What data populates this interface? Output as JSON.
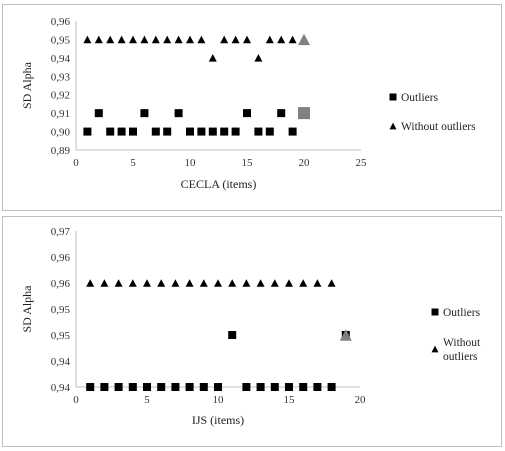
{
  "chart_data": [
    {
      "type": "scatter",
      "title": "",
      "xlabel": "CECLA (items)",
      "ylabel": "SD Alpha",
      "xlim": [
        0,
        25
      ],
      "ylim": [
        0.89,
        0.96
      ],
      "x_ticks": [
        "0",
        "5",
        "10",
        "15",
        "20",
        "25"
      ],
      "y_ticks": [
        "0,96",
        "0,95",
        "0,94",
        "0,93",
        "0,92",
        "0,91",
        "0,90",
        "0,89"
      ],
      "legend_position": "right",
      "series": [
        {
          "name": "Outliers",
          "marker": "square",
          "color": "#000000",
          "points": [
            [
              1,
              0.9
            ],
            [
              2,
              0.91
            ],
            [
              3,
              0.9
            ],
            [
              4,
              0.9
            ],
            [
              5,
              0.9
            ],
            [
              6,
              0.91
            ],
            [
              7,
              0.9
            ],
            [
              8,
              0.9
            ],
            [
              9,
              0.91
            ],
            [
              10,
              0.9
            ],
            [
              11,
              0.9
            ],
            [
              12,
              0.9
            ],
            [
              13,
              0.9
            ],
            [
              14,
              0.9
            ],
            [
              15,
              0.91
            ],
            [
              16,
              0.9
            ],
            [
              17,
              0.9
            ],
            [
              18,
              0.91
            ],
            [
              19,
              0.9
            ]
          ]
        },
        {
          "name": "Without outliers",
          "marker": "triangle",
          "color": "#000000",
          "points": [
            [
              1,
              0.95
            ],
            [
              2,
              0.95
            ],
            [
              3,
              0.95
            ],
            [
              4,
              0.95
            ],
            [
              5,
              0.95
            ],
            [
              6,
              0.95
            ],
            [
              7,
              0.95
            ],
            [
              8,
              0.95
            ],
            [
              9,
              0.95
            ],
            [
              10,
              0.95
            ],
            [
              11,
              0.95
            ],
            [
              12,
              0.94
            ],
            [
              13,
              0.95
            ],
            [
              14,
              0.95
            ],
            [
              15,
              0.95
            ],
            [
              16,
              0.94
            ],
            [
              17,
              0.95
            ],
            [
              18,
              0.95
            ],
            [
              19,
              0.95
            ]
          ]
        }
      ],
      "highlights": [
        {
          "marker": "square",
          "color": "#808080",
          "x": 20,
          "y": 0.91
        },
        {
          "marker": "triangle",
          "color": "#808080",
          "x": 20,
          "y": 0.95
        }
      ]
    },
    {
      "type": "scatter",
      "title": "",
      "xlabel": "IJS (items)",
      "ylabel": "SD Alpha",
      "xlim": [
        0,
        20
      ],
      "ylim": [
        0.94,
        0.97
      ],
      "x_ticks": [
        "0",
        "5",
        "10",
        "15",
        "20"
      ],
      "y_ticks": [
        "0,97",
        "0,96",
        "0,96",
        "0,95",
        "0,95",
        "0,94",
        "0,94"
      ],
      "legend_position": "right",
      "series": [
        {
          "name": "Outliers",
          "marker": "square",
          "color": "#000000",
          "points": [
            [
              1,
              0.94
            ],
            [
              2,
              0.94
            ],
            [
              3,
              0.94
            ],
            [
              4,
              0.94
            ],
            [
              5,
              0.94
            ],
            [
              6,
              0.94
            ],
            [
              7,
              0.94
            ],
            [
              8,
              0.94
            ],
            [
              9,
              0.94
            ],
            [
              10,
              0.94
            ],
            [
              11,
              0.95
            ],
            [
              12,
              0.94
            ],
            [
              13,
              0.94
            ],
            [
              14,
              0.94
            ],
            [
              15,
              0.94
            ],
            [
              16,
              0.94
            ],
            [
              17,
              0.94
            ],
            [
              18,
              0.94
            ],
            [
              19,
              0.95
            ]
          ]
        },
        {
          "name": "Without outliers",
          "legend_lines": [
            "Without",
            "outliers"
          ],
          "marker": "triangle",
          "color": "#000000",
          "points": [
            [
              1,
              0.96
            ],
            [
              2,
              0.96
            ],
            [
              3,
              0.96
            ],
            [
              4,
              0.96
            ],
            [
              5,
              0.96
            ],
            [
              6,
              0.96
            ],
            [
              7,
              0.96
            ],
            [
              8,
              0.96
            ],
            [
              9,
              0.96
            ],
            [
              10,
              0.96
            ],
            [
              11,
              0.96
            ],
            [
              12,
              0.96
            ],
            [
              13,
              0.96
            ],
            [
              14,
              0.96
            ],
            [
              15,
              0.96
            ],
            [
              16,
              0.96
            ],
            [
              17,
              0.96
            ],
            [
              18,
              0.96
            ]
          ]
        }
      ],
      "highlights": [
        {
          "marker": "triangle",
          "color": "#808080",
          "x": 19,
          "y": 0.95
        }
      ]
    }
  ]
}
